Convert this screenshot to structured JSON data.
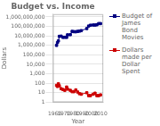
{
  "chart_data": {
    "type": "line",
    "title": "Budget vs. Income",
    "x_label": "Year",
    "y_label": "Dollars",
    "x": [
      1962,
      1963,
      1964,
      1965,
      1967,
      1969,
      1971,
      1973,
      1974,
      1977,
      1979,
      1981,
      1983,
      1985,
      1987,
      1989,
      1995,
      1997,
      1999,
      2002,
      2004,
      2006,
      2008,
      2010
    ],
    "series": [
      {
        "name": "Budget of\nJames\nBond\nMovies",
        "color": "#000080",
        "marker": "square",
        "values": [
          1000000,
          2000000,
          3000000,
          9000000,
          9500000,
          7000000,
          7200000,
          7000000,
          13000000,
          13500000,
          30000000,
          28000000,
          27500000,
          30000000,
          32000000,
          36000000,
          60000000,
          110000000,
          135000000,
          142000000,
          140000000,
          150000000,
          200000000,
          200000000
        ]
      },
      {
        "name": "Dollars\nmade per\nDollar\nSpent",
        "color": "#cc0000",
        "marker": "square",
        "values": [
          60,
          46,
          90,
          55,
          27,
          22,
          18,
          40,
          24,
          18,
          13,
          13,
          20,
          12,
          8,
          7,
          10,
          5,
          5,
          7,
          9,
          5,
          5,
          6
        ]
      }
    ],
    "xlim": [
      1958,
      2013
    ],
    "xticks": [
      1960,
      1970,
      1980,
      1990,
      2000,
      2010
    ],
    "ylim": [
      1,
      2000000000
    ],
    "yticks": [
      1,
      10,
      100,
      {
        "value": 1000,
        "label": "1,000"
      },
      {
        "value": 10000,
        "label": "10,000"
      },
      {
        "value": 100000,
        "label": "100,000"
      },
      {
        "value": 1000000,
        "label": "1,000,000"
      },
      {
        "value": 10000000,
        "label": "10,000,000"
      },
      {
        "value": 100000000,
        "label": "100,000,000"
      },
      {
        "value": 1000000000,
        "label": "1,000,000,000"
      }
    ],
    "log": "y",
    "grid": "y",
    "legend": "upper right"
  }
}
